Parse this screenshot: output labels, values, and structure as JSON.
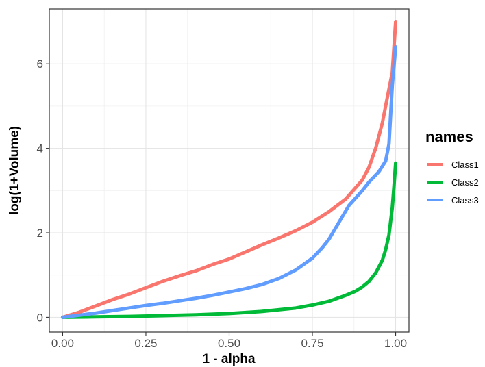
{
  "chart_data": {
    "type": "line",
    "xlabel": "1 - alpha",
    "ylabel": "log(1+Volume)",
    "xlim": [
      -0.04,
      1.04
    ],
    "ylim": [
      -0.35,
      7.3
    ],
    "xticks": [
      0,
      0.25,
      0.5,
      0.75,
      1
    ],
    "xtick_labels": [
      "0.00",
      "0.25",
      "0.50",
      "0.75",
      "1.00"
    ],
    "yticks": [
      0,
      2,
      4,
      6
    ],
    "ytick_labels": [
      "0",
      "2",
      "4",
      "6"
    ],
    "grid": true,
    "legend": {
      "title": "names",
      "position": "right"
    },
    "series": [
      {
        "name": "Class1",
        "color": "#F8766D",
        "x": [
          0,
          0.05,
          0.1,
          0.15,
          0.2,
          0.25,
          0.3,
          0.35,
          0.4,
          0.45,
          0.5,
          0.55,
          0.6,
          0.65,
          0.7,
          0.75,
          0.8,
          0.85,
          0.9,
          0.92,
          0.94,
          0.96,
          0.97,
          0.98,
          0.99,
          1.0
        ],
        "y": [
          0,
          0.12,
          0.27,
          0.42,
          0.55,
          0.7,
          0.85,
          0.98,
          1.1,
          1.25,
          1.38,
          1.55,
          1.72,
          1.88,
          2.05,
          2.25,
          2.5,
          2.8,
          3.25,
          3.55,
          4.0,
          4.6,
          5.0,
          5.4,
          5.8,
          7.0
        ]
      },
      {
        "name": "Class2",
        "color": "#00BA38",
        "x": [
          0,
          0.1,
          0.2,
          0.3,
          0.4,
          0.5,
          0.6,
          0.7,
          0.75,
          0.8,
          0.85,
          0.88,
          0.9,
          0.92,
          0.94,
          0.96,
          0.97,
          0.98,
          0.99,
          0.995,
          1.0
        ],
        "y": [
          0,
          0.01,
          0.02,
          0.04,
          0.06,
          0.09,
          0.14,
          0.22,
          0.29,
          0.38,
          0.52,
          0.62,
          0.72,
          0.85,
          1.05,
          1.35,
          1.6,
          1.95,
          2.6,
          3.1,
          3.65
        ]
      },
      {
        "name": "Class3",
        "color": "#619CFF",
        "x": [
          0,
          0.05,
          0.1,
          0.15,
          0.2,
          0.25,
          0.3,
          0.35,
          0.4,
          0.45,
          0.5,
          0.55,
          0.6,
          0.65,
          0.7,
          0.75,
          0.78,
          0.8,
          0.83,
          0.86,
          0.9,
          0.92,
          0.95,
          0.97,
          0.98,
          0.99,
          1.0
        ],
        "y": [
          0,
          0.05,
          0.1,
          0.16,
          0.22,
          0.28,
          0.33,
          0.39,
          0.45,
          0.52,
          0.6,
          0.68,
          0.78,
          0.92,
          1.12,
          1.4,
          1.65,
          1.85,
          2.25,
          2.65,
          3.0,
          3.2,
          3.45,
          3.7,
          4.1,
          5.5,
          6.4
        ]
      }
    ]
  }
}
